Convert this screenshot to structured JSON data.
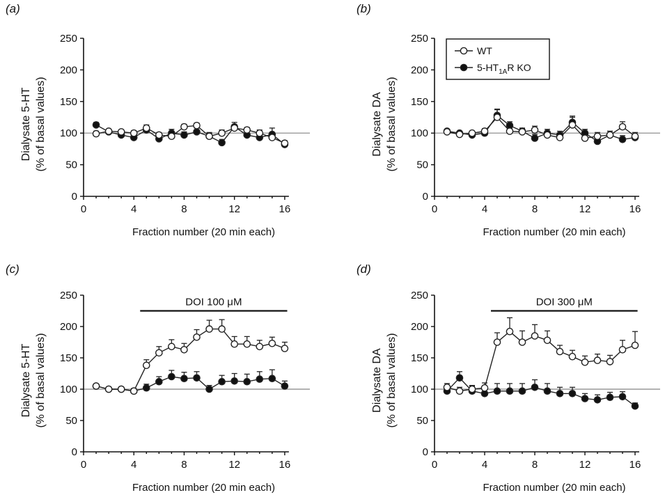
{
  "chart_data": [
    {
      "panel_label": "(a)",
      "type": "line",
      "xlabel": "Fraction number (20 min each)",
      "ylabel_line1": "Dialysate 5-HT",
      "ylabel_line2": "(% of basal values)",
      "xlim": [
        0,
        18
      ],
      "ylim": [
        0,
        250
      ],
      "xticks": [
        0,
        4,
        8,
        12,
        16
      ],
      "yticks": [
        0,
        50,
        100,
        150,
        200,
        250
      ],
      "baseline": 100,
      "x": [
        1,
        2,
        3,
        4,
        5,
        6,
        7,
        8,
        9,
        10,
        11,
        12,
        13,
        14,
        15,
        16
      ],
      "series": [
        {
          "name": "WT",
          "marker": "open-circle",
          "values": [
            99,
            103,
            102,
            100,
            108,
            97,
            95,
            110,
            112,
            95,
            100,
            108,
            105,
            100,
            93,
            84
          ],
          "errors": [
            4,
            3,
            3,
            4,
            5,
            4,
            4,
            4,
            4,
            5,
            5,
            5,
            4,
            5,
            5,
            4
          ]
        },
        {
          "name": "5-HT1AR KO",
          "marker": "filled-circle",
          "values": [
            113,
            102,
            97,
            93,
            105,
            91,
            100,
            97,
            102,
            95,
            85,
            110,
            97,
            93,
            98,
            82
          ],
          "errors": [
            4,
            3,
            4,
            5,
            6,
            5,
            6,
            5,
            6,
            6,
            5,
            7,
            6,
            7,
            10,
            5
          ]
        }
      ]
    },
    {
      "panel_label": "(b)",
      "type": "line",
      "xlabel": "Fraction number (20 min each)",
      "ylabel_line1": "Dialysate DA",
      "ylabel_line2": "(% of basal values)",
      "xlim": [
        0,
        18
      ],
      "ylim": [
        0,
        250
      ],
      "xticks": [
        0,
        4,
        8,
        12,
        16
      ],
      "yticks": [
        0,
        50,
        100,
        150,
        200,
        250
      ],
      "baseline": 100,
      "legend_position": "top-right",
      "x": [
        1,
        2,
        3,
        4,
        5,
        6,
        7,
        8,
        9,
        10,
        11,
        12,
        13,
        14,
        15,
        16
      ],
      "series": [
        {
          "name": "WT",
          "marker": "open-circle",
          "values": [
            102,
            98,
            100,
            103,
            125,
            103,
            102,
            105,
            97,
            93,
            113,
            92,
            95,
            97,
            110,
            95
          ],
          "errors": [
            3,
            3,
            3,
            4,
            12,
            5,
            5,
            6,
            6,
            5,
            12,
            6,
            6,
            6,
            8,
            6
          ]
        },
        {
          "name": "5-HT1AR KO",
          "marker": "filled-circle",
          "values": [
            103,
            100,
            97,
            100,
            128,
            112,
            103,
            92,
            100,
            97,
            117,
            100,
            87,
            97,
            90,
            93
          ],
          "errors": [
            3,
            3,
            4,
            4,
            10,
            6,
            5,
            6,
            6,
            6,
            10,
            6,
            6,
            6,
            6,
            5
          ]
        }
      ]
    },
    {
      "panel_label": "(c)",
      "type": "line",
      "xlabel": "Fraction number (20 min each)",
      "ylabel_line1": "Dialysate 5-HT",
      "ylabel_line2": "(% of basal values)",
      "xlim": [
        0,
        18
      ],
      "ylim": [
        0,
        250
      ],
      "xticks": [
        0,
        4,
        8,
        12,
        16
      ],
      "yticks": [
        0,
        50,
        100,
        150,
        200,
        250
      ],
      "baseline": 100,
      "drug_bar": {
        "label": "DOI 100 μM",
        "x_start": 4.5,
        "x_end": 16.2,
        "y": 225
      },
      "x": [
        1,
        2,
        3,
        4,
        5,
        6,
        7,
        8,
        9,
        10,
        11,
        12,
        13,
        14,
        15,
        16
      ],
      "series": [
        {
          "name": "WT",
          "marker": "open-circle",
          "values": [
            105,
            100,
            100,
            97,
            138,
            158,
            168,
            163,
            183,
            196,
            196,
            172,
            172,
            168,
            173,
            165
          ],
          "errors": [
            3,
            3,
            3,
            4,
            9,
            10,
            11,
            10,
            12,
            14,
            15,
            12,
            12,
            10,
            10,
            10
          ]
        },
        {
          "name": "5-HT1AR KO",
          "marker": "filled-circle",
          "values": [
            105,
            100,
            100,
            97,
            102,
            112,
            120,
            117,
            118,
            100,
            112,
            113,
            112,
            116,
            117,
            105
          ],
          "errors": [
            3,
            3,
            3,
            4,
            6,
            8,
            10,
            10,
            10,
            6,
            10,
            12,
            12,
            12,
            14,
            8
          ]
        }
      ]
    },
    {
      "panel_label": "(d)",
      "type": "line",
      "xlabel": "Fraction number (20 min each)",
      "ylabel_line1": "Dialysate DA",
      "ylabel_line2": "(% of basal values)",
      "xlim": [
        0,
        18
      ],
      "ylim": [
        0,
        250
      ],
      "xticks": [
        0,
        4,
        8,
        12,
        16
      ],
      "yticks": [
        0,
        50,
        100,
        150,
        200,
        250
      ],
      "baseline": 100,
      "drug_bar": {
        "label": "DOI 300 μM",
        "x_start": 4.5,
        "x_end": 16.2,
        "y": 225
      },
      "x": [
        1,
        2,
        3,
        4,
        5,
        6,
        7,
        8,
        9,
        10,
        11,
        12,
        13,
        14,
        15,
        16
      ],
      "series": [
        {
          "name": "WT",
          "marker": "open-circle",
          "values": [
            103,
            97,
            100,
            102,
            175,
            192,
            175,
            185,
            178,
            160,
            152,
            143,
            146,
            144,
            163,
            170
          ],
          "errors": [
            6,
            6,
            6,
            8,
            15,
            22,
            18,
            18,
            15,
            10,
            10,
            10,
            10,
            10,
            15,
            22
          ]
        },
        {
          "name": "5-HT1AR KO",
          "marker": "filled-circle",
          "values": [
            97,
            118,
            97,
            93,
            97,
            97,
            97,
            103,
            97,
            93,
            93,
            85,
            83,
            87,
            88,
            73
          ],
          "errors": [
            4,
            10,
            8,
            10,
            12,
            12,
            12,
            12,
            12,
            10,
            10,
            8,
            8,
            8,
            8,
            5
          ]
        }
      ]
    }
  ],
  "legend": {
    "wt_label": "WT",
    "ko_label_main": "5-HT",
    "ko_label_sub": "1A",
    "ko_label_tail": "R KO"
  },
  "colors": {
    "axis": "#111111",
    "baseline": "#999999",
    "marker_stroke": "#222222",
    "filled_marker": "#111111",
    "open_marker_fill": "#ffffff"
  }
}
